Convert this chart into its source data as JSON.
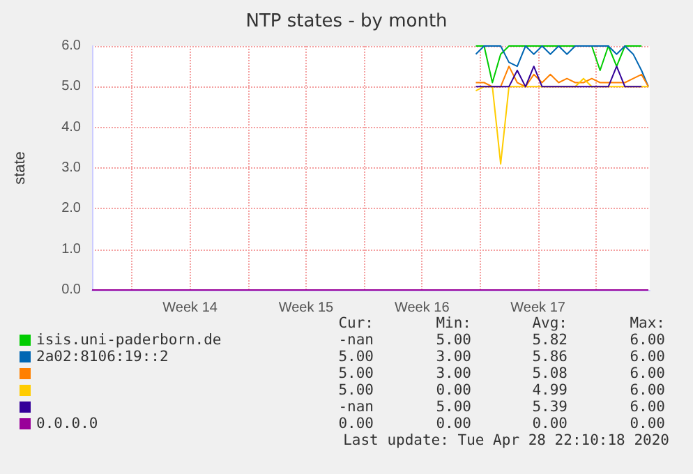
{
  "chart_data": {
    "type": "line",
    "title": "NTP states - by month",
    "ylabel": "state",
    "x": [
      "2020-04-18T12:00",
      "2020-04-19T00:00",
      "2020-04-19T12:00",
      "2020-04-20T00:00",
      "2020-04-20T12:00",
      "2020-04-21T00:00",
      "2020-04-21T12:00",
      "2020-04-22T00:00",
      "2020-04-22T12:00",
      "2020-04-23T00:00",
      "2020-04-23T12:00",
      "2020-04-24T00:00",
      "2020-04-24T12:00",
      "2020-04-25T00:00",
      "2020-04-25T12:00",
      "2020-04-26T00:00",
      "2020-04-26T12:00",
      "2020-04-27T00:00",
      "2020-04-27T12:00",
      "2020-04-28T00:00",
      "2020-04-28T12:00",
      "2020-04-28T22:00"
    ],
    "series": [
      {
        "name": "isis.uni-paderborn.de",
        "color": "#00cc00",
        "values": [
          6,
          6,
          5.1,
          5.8,
          6,
          6,
          6,
          6,
          6,
          6,
          6,
          6,
          6,
          6,
          6,
          5.4,
          6,
          5.5,
          6,
          6,
          6,
          null
        ]
      },
      {
        "name": "2a02:8106:19::2",
        "color": "#0066b3",
        "values": [
          5.8,
          6,
          6,
          6,
          5.6,
          5.5,
          6,
          5.8,
          6,
          5.8,
          6,
          5.8,
          6,
          6,
          6,
          6,
          6,
          5.8,
          6,
          5.8,
          5.4,
          5
        ]
      },
      {
        "color": "#ff8000",
        "values": [
          5.1,
          5.1,
          5,
          5,
          5.5,
          5.1,
          5,
          5.3,
          5.1,
          5.3,
          5.1,
          5.2,
          5.1,
          5.1,
          5.2,
          5.1,
          5.1,
          5.1,
          5.1,
          5.2,
          5.3,
          5
        ]
      },
      {
        "color": "#ffcc00",
        "values": [
          4.9,
          5,
          5,
          3.1,
          5,
          5,
          5,
          5,
          5,
          5,
          5,
          5,
          5,
          5.2,
          5,
          5,
          5,
          5,
          5,
          5,
          5,
          5
        ]
      },
      {
        "color": "#330099",
        "values": [
          5,
          5,
          5,
          5,
          5,
          5.4,
          5,
          5.5,
          5,
          5,
          5,
          5,
          5,
          5,
          5,
          5,
          5,
          5.5,
          5,
          5,
          5,
          null
        ]
      },
      {
        "name": "0.0.0.0",
        "color": "#990099",
        "x": [
          "2020-03-26T08:00",
          "2020-04-28T22:00"
        ],
        "values": [
          0,
          0
        ]
      }
    ],
    "xlim": [
      "2020-03-26T08:00",
      "2020-04-29T00:00"
    ],
    "xticks": [
      {
        "value": "2020-03-28T18:00",
        "label": null
      },
      {
        "value": "2020-04-01T06:00",
        "label": "Week 14"
      },
      {
        "value": "2020-04-04T18:00",
        "label": null
      },
      {
        "value": "2020-04-08T06:00",
        "label": "Week 15"
      },
      {
        "value": "2020-04-11T18:00",
        "label": null
      },
      {
        "value": "2020-04-15T06:00",
        "label": "Week 16"
      },
      {
        "value": "2020-04-18T18:00",
        "label": null
      },
      {
        "value": "2020-04-22T06:00",
        "label": "Week 17"
      },
      {
        "value": "2020-04-25T18:00",
        "label": null
      }
    ],
    "ylim": [
      0,
      6
    ],
    "yticks": [
      {
        "value": 0,
        "label": "0.0"
      },
      {
        "value": 1,
        "label": "1.0"
      },
      {
        "value": 2,
        "label": "2.0"
      },
      {
        "value": 3,
        "label": "3.0"
      },
      {
        "value": 4,
        "label": "4.0"
      },
      {
        "value": 5,
        "label": "5.0"
      },
      {
        "value": 6,
        "label": "6.0"
      }
    ],
    "grid": true,
    "legend": "bottom",
    "marker": "none",
    "line_style": "solid",
    "annotations": [
      "Cur:",
      "Min:",
      "Avg:",
      "Max:",
      "-nan",
      "5.00",
      "5.82",
      "6.00",
      "5.00",
      "3.00",
      "5.86",
      "6.00",
      "5.00",
      "3.00",
      "5.08",
      "6.00",
      "5.00",
      "0.00",
      "4.99",
      "6.00",
      "-nan",
      "5.00",
      "5.39",
      "6.00",
      "0.00",
      "0.00",
      "0.00",
      "0.00",
      "Last update: Tue Apr 28 22:10:18 2020"
    ]
  }
}
